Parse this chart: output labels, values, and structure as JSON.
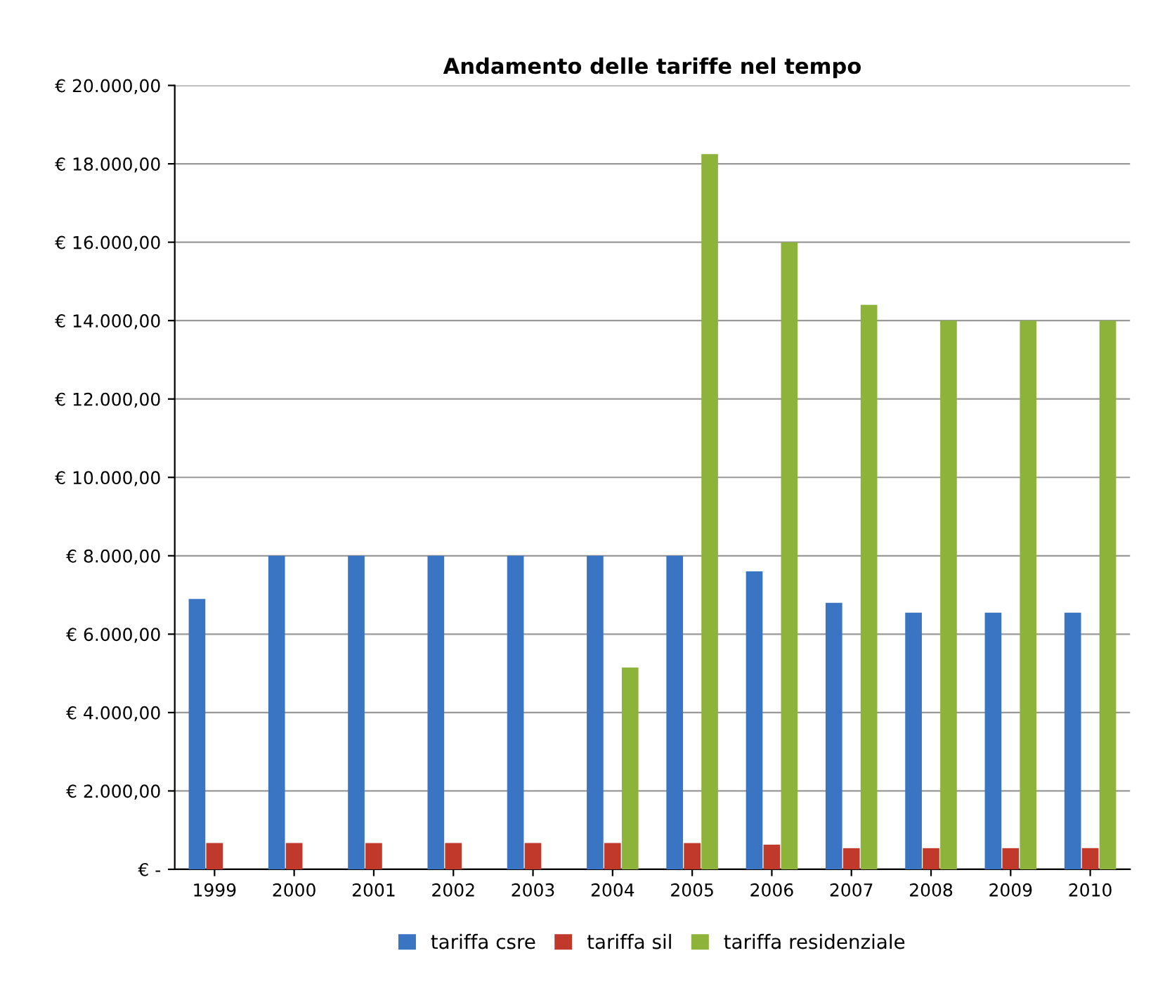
{
  "chart_data": {
    "type": "bar",
    "title": "Andamento delle tariffe nel tempo",
    "categories": [
      "1999",
      "2000",
      "2001",
      "2002",
      "2003",
      "2004",
      "2005",
      "2006",
      "2007",
      "2008",
      "2009",
      "2010"
    ],
    "series": [
      {
        "name": "tariffa csre",
        "color": "#3a75c4",
        "values": [
          6900,
          8000,
          8000,
          8000,
          8000,
          8000,
          8000,
          7600,
          6800,
          6550,
          6550,
          6550
        ]
      },
      {
        "name": "tariffa sil",
        "color": "#c0392b",
        "values": [
          670,
          670,
          670,
          670,
          670,
          670,
          670,
          630,
          540,
          540,
          540,
          540
        ]
      },
      {
        "name": "tariffa residenziale",
        "color": "#8db33a",
        "values": [
          null,
          null,
          null,
          null,
          null,
          5150,
          18250,
          16000,
          14400,
          14000,
          14000,
          14000
        ]
      }
    ],
    "ylim": [
      0,
      20000
    ],
    "yticks": [
      {
        "value": 0,
        "label": "€ -"
      },
      {
        "value": 2000,
        "label": "€ 2.000,00"
      },
      {
        "value": 4000,
        "label": "€ 4.000,00"
      },
      {
        "value": 6000,
        "label": "€ 6.000,00"
      },
      {
        "value": 8000,
        "label": "€ 8.000,00"
      },
      {
        "value": 10000,
        "label": "€ 10.000,00"
      },
      {
        "value": 12000,
        "label": "€ 12.000,00"
      },
      {
        "value": 14000,
        "label": "€ 14.000,00"
      },
      {
        "value": 16000,
        "label": "€ 16.000,00"
      },
      {
        "value": 18000,
        "label": "€ 18.000,00"
      },
      {
        "value": 20000,
        "label": "€ 20.000,00"
      }
    ],
    "grid": "y",
    "legend": "bottom"
  }
}
